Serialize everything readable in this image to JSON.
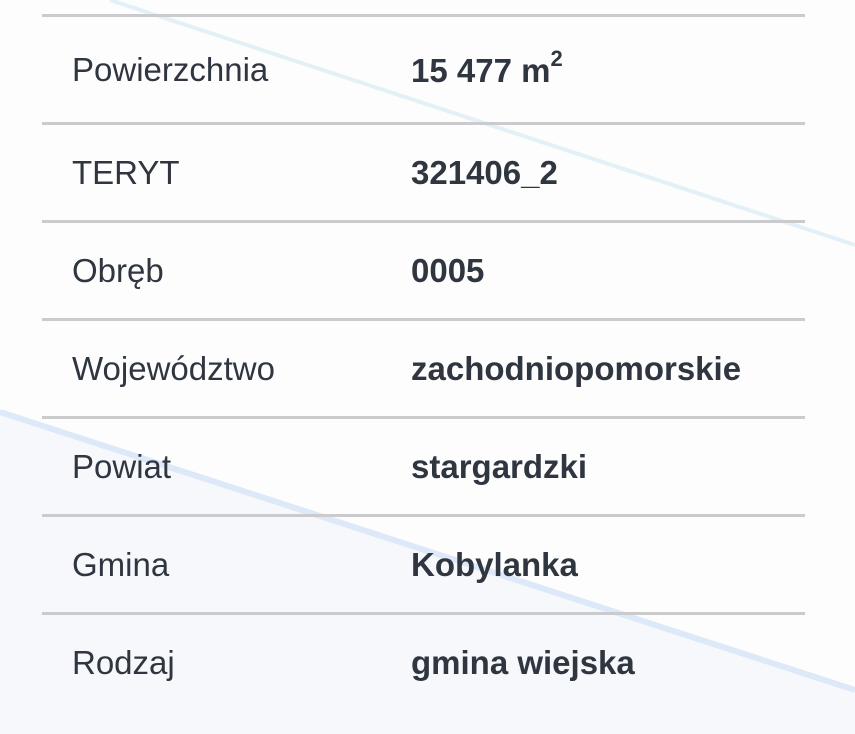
{
  "rows": [
    {
      "label": "Powierzchnia",
      "value": "15 477 m",
      "value_sup": "2"
    },
    {
      "label": "TERYT",
      "value": "321406_2"
    },
    {
      "label": "Obręb",
      "value": "0005"
    },
    {
      "label": "Województwo",
      "value": "zachodniopomorskie"
    },
    {
      "label": "Powiat",
      "value": "stargardzki"
    },
    {
      "label": "Gmina",
      "value": "Kobylanka"
    },
    {
      "label": "Rodzaj",
      "value": "gmina wiejska"
    }
  ]
}
